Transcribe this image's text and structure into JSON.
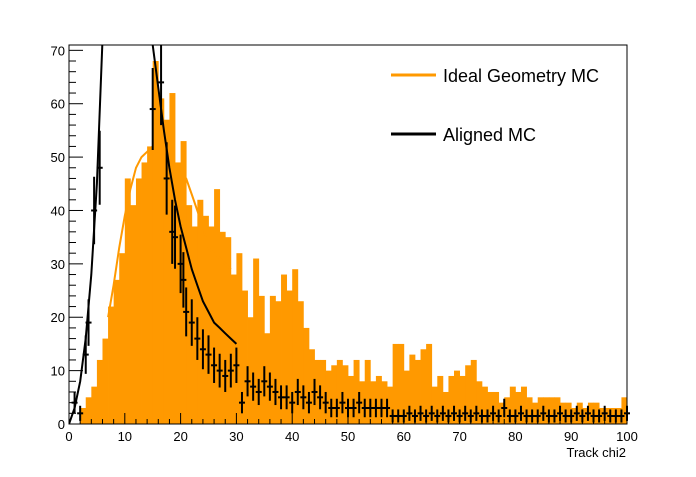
{
  "chart_data": {
    "type": "bar",
    "xlabel": "Track chi2",
    "ylabel": "",
    "xlim": [
      0,
      100
    ],
    "ylim": [
      0,
      71
    ],
    "xticks": [
      0,
      10,
      20,
      30,
      40,
      50,
      60,
      70,
      80,
      90,
      100
    ],
    "yticks": [
      0,
      10,
      20,
      30,
      40,
      50,
      60,
      70
    ],
    "legend_position": "top-right",
    "colors": {
      "ideal": "#ff9900",
      "aligned": "#000000"
    },
    "bin_width": 1,
    "series": [
      {
        "name": "Ideal Geometry MC",
        "type": "histogram",
        "x_start": 0,
        "values": [
          0,
          0,
          3,
          5,
          7,
          12,
          16,
          22,
          27,
          32,
          46,
          41,
          46,
          49,
          52,
          68,
          61,
          57,
          62,
          49,
          53,
          41,
          37,
          42,
          39,
          37,
          44,
          36,
          35,
          28,
          32,
          25,
          20,
          31,
          24,
          17,
          24,
          23,
          28,
          25,
          29,
          23,
          18,
          14,
          12,
          12,
          10,
          11,
          12,
          11,
          9,
          12,
          8,
          12,
          8,
          9,
          8,
          7,
          15,
          15,
          10,
          13,
          12,
          14,
          15,
          7,
          9,
          6,
          9,
          10,
          9,
          11,
          12,
          8,
          7,
          6,
          6,
          4,
          5,
          7,
          6,
          7,
          5,
          4,
          5,
          5,
          5,
          5,
          4,
          4,
          3,
          4,
          3,
          4,
          4,
          3,
          3,
          3,
          3,
          5
        ]
      },
      {
        "name": "Aligned MC",
        "type": "points_with_errors",
        "points": [
          [
            1.0,
            4.0
          ],
          [
            2.0,
            2.0
          ],
          [
            3.0,
            13.0
          ],
          [
            3.5,
            19.0
          ],
          [
            4.5,
            40.0
          ],
          [
            5.5,
            48.0
          ],
          [
            15.0,
            59.0
          ],
          [
            16.5,
            64.0
          ],
          [
            17.5,
            46.0
          ],
          [
            18.5,
            36.0
          ],
          [
            19.0,
            35.0
          ],
          [
            20.0,
            30.0
          ],
          [
            20.5,
            27.0
          ],
          [
            21.0,
            21.0
          ],
          [
            22.0,
            19.0
          ],
          [
            23.0,
            16.0
          ],
          [
            24.0,
            14.0
          ],
          [
            25.0,
            13.0
          ],
          [
            26.0,
            11.0
          ],
          [
            27.0,
            10.0
          ],
          [
            28.0,
            9.0
          ],
          [
            29.0,
            10.0
          ],
          [
            30.0,
            11.0
          ],
          [
            31.0,
            4.0
          ],
          [
            32.0,
            8.0
          ],
          [
            33.0,
            7.0
          ],
          [
            34.0,
            6.0
          ],
          [
            35.0,
            8.0
          ],
          [
            36.0,
            7.0
          ],
          [
            37.0,
            6.0
          ],
          [
            38.0,
            5.0
          ],
          [
            39.0,
            5.0
          ],
          [
            40.0,
            4.0
          ],
          [
            41.0,
            6.0
          ],
          [
            42.0,
            5.0
          ],
          [
            43.0,
            4.0
          ],
          [
            44.0,
            6.0
          ],
          [
            45.0,
            5.0
          ],
          [
            46.0,
            4.0
          ],
          [
            47.0,
            3.0
          ],
          [
            48.0,
            3.0
          ],
          [
            49.0,
            4.0
          ],
          [
            50.0,
            3.0
          ],
          [
            51.0,
            3.0
          ],
          [
            52.0,
            4.0
          ],
          [
            53.0,
            3.0
          ],
          [
            54.0,
            3.0
          ],
          [
            55.0,
            3.0
          ],
          [
            56.0,
            3.0
          ],
          [
            57.0,
            3.0
          ],
          [
            58.0,
            1.5
          ],
          [
            59.0,
            1.5
          ],
          [
            60.0,
            1.5
          ],
          [
            61.0,
            2.0
          ],
          [
            62.0,
            1.5
          ],
          [
            63.0,
            2.0
          ],
          [
            64.0,
            1.5
          ],
          [
            65.0,
            2.0
          ],
          [
            66.0,
            1.5
          ],
          [
            67.0,
            2.0
          ],
          [
            68.0,
            1.5
          ],
          [
            69.0,
            2.0
          ],
          [
            70.0,
            1.5
          ],
          [
            71.0,
            2.0
          ],
          [
            72.0,
            1.5
          ],
          [
            73.0,
            2.0
          ],
          [
            74.0,
            1.5
          ],
          [
            75.0,
            1.5
          ],
          [
            76.0,
            2.0
          ],
          [
            77.0,
            1.5
          ],
          [
            78.0,
            3.0
          ],
          [
            79.0,
            1.5
          ],
          [
            80.0,
            1.5
          ],
          [
            81.0,
            2.0
          ],
          [
            82.0,
            1.5
          ],
          [
            83.0,
            1.5
          ],
          [
            84.0,
            1.5
          ],
          [
            85.0,
            2.0
          ],
          [
            86.0,
            1.5
          ],
          [
            87.0,
            1.5
          ],
          [
            88.0,
            2.0
          ],
          [
            89.0,
            1.5
          ],
          [
            90.0,
            1.5
          ],
          [
            91.0,
            2.0
          ],
          [
            92.0,
            1.5
          ],
          [
            93.0,
            2.0
          ],
          [
            94.0,
            1.5
          ],
          [
            95.0,
            1.5
          ],
          [
            96.0,
            2.0
          ],
          [
            97.0,
            1.5
          ],
          [
            98.0,
            1.5
          ],
          [
            99.0,
            1.5
          ],
          [
            100.0,
            2.0
          ]
        ]
      }
    ],
    "fits": [
      {
        "series": "Ideal Geometry MC",
        "points": [
          [
            7,
            20
          ],
          [
            8,
            26
          ],
          [
            9,
            33
          ],
          [
            10,
            39
          ],
          [
            11,
            44
          ],
          [
            12,
            48
          ],
          [
            13,
            50
          ],
          [
            14,
            51
          ],
          [
            15,
            52
          ],
          [
            16,
            51
          ],
          [
            17,
            50
          ],
          [
            18,
            49
          ],
          [
            19,
            48
          ],
          [
            20,
            47
          ],
          [
            21,
            46
          ],
          [
            22,
            43
          ],
          [
            23,
            40
          ],
          [
            24,
            37
          ],
          [
            25,
            33
          ],
          [
            26,
            32
          ],
          [
            27,
            31
          ],
          [
            28,
            30
          ],
          [
            29,
            29
          ]
        ]
      },
      {
        "series": "Aligned MC",
        "points": [
          [
            0,
            0
          ],
          [
            1,
            3
          ],
          [
            2,
            8
          ],
          [
            3,
            16
          ],
          [
            4,
            28
          ],
          [
            5,
            45
          ],
          [
            6,
            72
          ]
        ]
      },
      {
        "series": "Aligned MC",
        "points": [
          [
            15,
            71
          ],
          [
            16,
            63
          ],
          [
            17,
            55
          ],
          [
            18,
            48
          ],
          [
            19,
            42
          ],
          [
            20,
            37
          ],
          [
            21,
            33
          ],
          [
            22,
            29
          ],
          [
            23,
            26
          ],
          [
            24,
            23
          ],
          [
            25,
            21
          ],
          [
            26,
            19
          ],
          [
            27,
            18
          ],
          [
            28,
            17
          ],
          [
            29,
            16
          ],
          [
            30,
            15
          ]
        ]
      }
    ]
  }
}
